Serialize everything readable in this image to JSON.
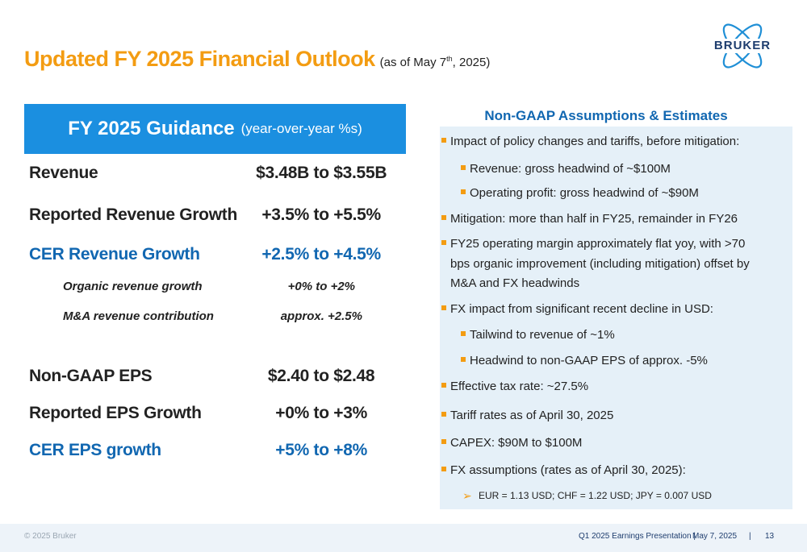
{
  "title": {
    "main": "Updated FY 2025 Financial Outlook",
    "sub_prefix": "(as of May 7",
    "sub_sup": "th",
    "sub_suffix": ", 2025)"
  },
  "logo": {
    "text": "BRUKER",
    "color": "#1e3d6e"
  },
  "guidance": {
    "header_main": "FY 2025 Guidance",
    "header_sub": "(year-over-year %s)",
    "header_color": "#1b8fe0",
    "rows": [
      {
        "label": "Revenue",
        "value": "$3.48B to $3.55B"
      },
      {
        "label": "Reported Revenue Growth",
        "value": "+3.5% to +5.5%"
      },
      {
        "label": "CER Revenue Growth",
        "value": "+2.5% to +4.5%"
      },
      {
        "label": "Organic revenue growth",
        "value": "+0% to +2%"
      },
      {
        "label": "M&A revenue contribution",
        "value": "approx. +2.5%"
      },
      {
        "label": "Non-GAAP EPS",
        "value": "$2.40 to $2.48"
      },
      {
        "label": "Reported EPS Growth",
        "value": "+0% to +3%"
      },
      {
        "label": "CER EPS growth",
        "value": "+5% to +8%"
      }
    ]
  },
  "assumptions": {
    "title": "Non-GAAP Assumptions & Estimates",
    "items": [
      "Impact of policy changes and tariffs, before mitigation:",
      "Revenue: gross headwind of ~$100M",
      "Operating profit: gross headwind of ~$90M",
      "Mitigation: more than half in FY25, remainder in FY26",
      "FY25 operating margin approximately flat yoy, with >70",
      "bps organic improvement (including mitigation) offset by",
      "M&A and FX headwinds",
      "FX impact from significant recent decline in USD:",
      "Tailwind to revenue of ~1%",
      "Headwind to non-GAAP EPS of approx. -5%",
      "Effective tax rate: ~27.5%",
      "Tariff rates as of April 30, 2025",
      "CAPEX: $90M to $100M",
      "FX assumptions (rates as of April 30, 2025):",
      "EUR = 1.13 USD; CHF = 1.22 USD; JPY = 0.007 USD"
    ]
  },
  "footer": {
    "copyright": "© 2025 Bruker",
    "presentation": "Q1 2025 Earnings Presentation |",
    "date": "May 7, 2025",
    "separator": "|",
    "page": "13"
  },
  "colors": {
    "accent_orange": "#f39c12",
    "accent_blue": "#1167b1",
    "panel_bg": "#e5f0f8"
  }
}
